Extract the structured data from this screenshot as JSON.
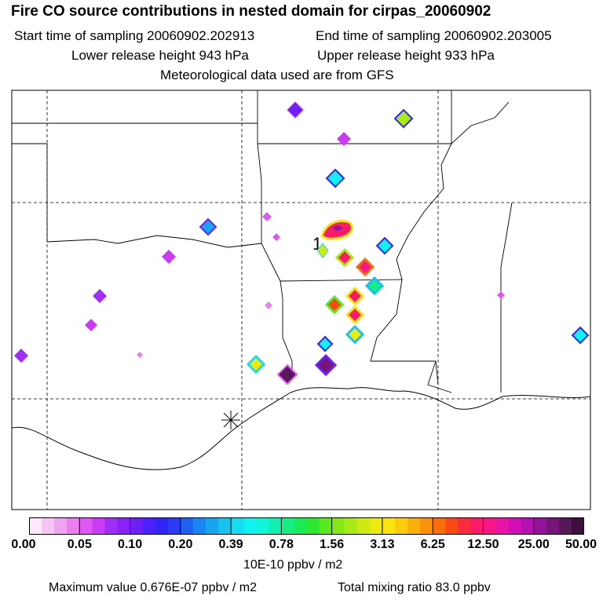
{
  "header": {
    "title": "Fire CO source contributions in nested domain for cirpas_20060902",
    "start_time": "Start time of sampling 20060902.202913",
    "end_time": "End time of sampling 20060902.203005",
    "lower_height": "Lower release height  943 hPa",
    "upper_height": "Upper release height  933 hPa",
    "met_data": "Meteorological data used are from GFS"
  },
  "map": {
    "release_marker_label": "1"
  },
  "colorbar": {
    "tick_labels": [
      "0.00",
      "0.05",
      "0.10",
      "0.20",
      "0.39",
      "0.78",
      "1.56",
      "3.13",
      "6.25",
      "12.50",
      "25.00",
      "50.00"
    ],
    "units": "10E-10 ppbv / m2",
    "colors": [
      "#fde8fc",
      "#f7c5f5",
      "#f0a3f0",
      "#eb7ff0",
      "#df58f4",
      "#c93bf5",
      "#a12ef5",
      "#8a22f8",
      "#6d21f8",
      "#4d21fb",
      "#3225fa",
      "#2a3cf6",
      "#1e62f3",
      "#1a86f2",
      "#17a5f0",
      "#17c2ef",
      "#13ddef",
      "#10f2ed",
      "#10f5d8",
      "#12f0b0",
      "#15ed85",
      "#1aea55",
      "#2ce82d",
      "#5ae81e",
      "#86e917",
      "#aaea14",
      "#cdea12",
      "#ecea10",
      "#fbe40d",
      "#fccb0d",
      "#fbb00b",
      "#fa920a",
      "#f96d0b",
      "#f94a14",
      "#f92b3e",
      "#f81b67",
      "#f51788",
      "#e814a3",
      "#d010b5",
      "#b411b3",
      "#951396",
      "#751678",
      "#571759",
      "#3d0f3d"
    ]
  },
  "footer": {
    "max_value": "Maximum value  0.676E-07 ppbv / m2",
    "total_mixing": "Total mixing ratio       83.0 ppbv"
  }
}
